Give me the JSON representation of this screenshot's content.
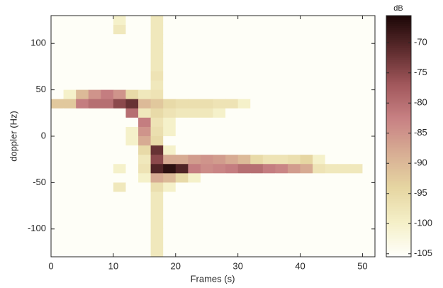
{
  "chart_data": {
    "type": "heatmap",
    "xlabel": "Frames (s)",
    "ylabel": "doppler (Hz)",
    "colorbar_label": "dB",
    "xlim": [
      0,
      52
    ],
    "ylim": [
      -130,
      130
    ],
    "xticks": [
      0,
      10,
      20,
      30,
      40,
      50
    ],
    "yticks": [
      -100,
      -50,
      0,
      50,
      100
    ],
    "clim": [
      -105.5,
      -65.5
    ],
    "cticks": [
      -105,
      -100,
      -95,
      -90,
      -85,
      -80,
      -75,
      -70
    ],
    "colormap": [
      "#fffffb",
      "#f5f0c8",
      "#e6d6a2",
      "#d8ae94",
      "#c88284",
      "#a2585c",
      "#5e2c2e",
      "#1c0707"
    ],
    "xbins": [
      0,
      2,
      4,
      6,
      8,
      10,
      12,
      14,
      16,
      18,
      20,
      22,
      24,
      26,
      28,
      30,
      32,
      34,
      36,
      38,
      40,
      42,
      44,
      46,
      48,
      50,
      52
    ],
    "ybins": [
      130,
      120,
      110,
      100,
      90,
      80,
      70,
      60,
      50,
      40,
      30,
      20,
      10,
      0,
      -10,
      -20,
      -30,
      -40,
      -50,
      -60,
      -70,
      -80,
      -90,
      -100,
      -110,
      -120,
      -130
    ],
    "z": [
      [
        -105,
        -105,
        -105,
        -105,
        -105,
        -100,
        -105,
        -105,
        -98,
        -105,
        -105,
        -105,
        -105,
        -105,
        -105,
        -105,
        -105,
        -105,
        -105,
        -105,
        -105,
        -105,
        -105,
        -105,
        -105,
        -105
      ],
      [
        -105,
        -105,
        -105,
        -105,
        -105,
        -98,
        -105,
        -105,
        -98,
        -105,
        -105,
        -105,
        -105,
        -105,
        -105,
        -105,
        -105,
        -105,
        -105,
        -105,
        -105,
        -105,
        -105,
        -105,
        -105,
        -105
      ],
      [
        -105,
        -105,
        -105,
        -105,
        -105,
        -105,
        -105,
        -105,
        -98,
        -105,
        -105,
        -105,
        -105,
        -105,
        -105,
        -105,
        -105,
        -105,
        -105,
        -105,
        -105,
        -105,
        -105,
        -105,
        -105,
        -105
      ],
      [
        -105,
        -105,
        -105,
        -105,
        -105,
        -105,
        -105,
        -105,
        -98,
        -105,
        -105,
        -105,
        -105,
        -105,
        -105,
        -105,
        -105,
        -105,
        -105,
        -105,
        -105,
        -105,
        -105,
        -105,
        -105,
        -105
      ],
      [
        -105,
        -105,
        -105,
        -105,
        -105,
        -105,
        -105,
        -105,
        -98,
        -105,
        -105,
        -105,
        -105,
        -105,
        -105,
        -105,
        -105,
        -105,
        -105,
        -105,
        -105,
        -105,
        -105,
        -105,
        -105,
        -105
      ],
      [
        -105,
        -105,
        -105,
        -105,
        -105,
        -105,
        -105,
        -105,
        -98,
        -105,
        -105,
        -105,
        -105,
        -105,
        -105,
        -105,
        -105,
        -105,
        -105,
        -105,
        -105,
        -105,
        -105,
        -105,
        -105,
        -105
      ],
      [
        -105,
        -105,
        -105,
        -105,
        -105,
        -105,
        -105,
        -105,
        -97,
        -105,
        -105,
        -105,
        -105,
        -105,
        -105,
        -105,
        -105,
        -105,
        -105,
        -105,
        -105,
        -105,
        -105,
        -105,
        -105,
        -105
      ],
      [
        -105,
        -105,
        -105,
        -105,
        -105,
        -105,
        -105,
        -105,
        -98,
        -105,
        -105,
        -105,
        -105,
        -105,
        -105,
        -105,
        -105,
        -105,
        -105,
        -105,
        -105,
        -105,
        -105,
        -105,
        -105,
        -105
      ],
      [
        -105,
        -100,
        -90,
        -85,
        -82,
        -85,
        -95,
        -98,
        -97,
        -105,
        -105,
        -105,
        -105,
        -105,
        -105,
        -105,
        -105,
        -105,
        -105,
        -105,
        -105,
        -105,
        -105,
        -105,
        -105,
        -105
      ],
      [
        -92,
        -92,
        -82,
        -80,
        -80,
        -75,
        -72,
        -90,
        -92,
        -95,
        -96,
        -96,
        -96,
        -97,
        -97,
        -100,
        -105,
        -105,
        -105,
        -105,
        -105,
        -105,
        -105,
        -105,
        -105,
        -105
      ],
      [
        -105,
        -105,
        -105,
        -105,
        -105,
        -105,
        -80,
        -98,
        -95,
        -97,
        -98,
        -98,
        -98,
        -100,
        -105,
        -105,
        -105,
        -105,
        -105,
        -105,
        -105,
        -105,
        -105,
        -105,
        -105,
        -105
      ],
      [
        -105,
        -105,
        -105,
        -105,
        -105,
        -105,
        -105,
        -82,
        -97,
        -100,
        -105,
        -105,
        -105,
        -105,
        -105,
        -105,
        -105,
        -105,
        -105,
        -105,
        -105,
        -105,
        -105,
        -105,
        -105,
        -105
      ],
      [
        -105,
        -105,
        -105,
        -105,
        -105,
        -105,
        -100,
        -85,
        -96,
        -100,
        -105,
        -105,
        -105,
        -105,
        -105,
        -105,
        -105,
        -105,
        -105,
        -105,
        -105,
        -105,
        -105,
        -105,
        -105,
        -105
      ],
      [
        -105,
        -105,
        -105,
        -105,
        -105,
        -105,
        -100,
        -88,
        -95,
        -105,
        -105,
        -105,
        -105,
        -105,
        -105,
        -105,
        -105,
        -105,
        -105,
        -105,
        -105,
        -105,
        -105,
        -105,
        -105,
        -105
      ],
      [
        -105,
        -105,
        -105,
        -105,
        -105,
        -105,
        -105,
        -95,
        -72,
        -100,
        -105,
        -105,
        -105,
        -105,
        -105,
        -105,
        -105,
        -105,
        -105,
        -105,
        -105,
        -105,
        -105,
        -105,
        -105,
        -105
      ],
      [
        -105,
        -105,
        -105,
        -105,
        -105,
        -105,
        -105,
        -98,
        -75,
        -88,
        -88,
        -86,
        -85,
        -86,
        -88,
        -90,
        -95,
        -97,
        -97,
        -96,
        -94,
        -100,
        -105,
        -105,
        -105,
        -105
      ],
      [
        -105,
        -105,
        -105,
        -105,
        -105,
        -100,
        -105,
        -97,
        -70,
        -67,
        -70,
        -82,
        -84,
        -83,
        -82,
        -80,
        -80,
        -82,
        -83,
        -86,
        -88,
        -97,
        -98,
        -98,
        -98,
        -105
      ],
      [
        -105,
        -105,
        -105,
        -105,
        -105,
        -105,
        -105,
        -100,
        -88,
        -90,
        -95,
        -100,
        -105,
        -105,
        -105,
        -105,
        -105,
        -105,
        -105,
        -105,
        -105,
        -105,
        -105,
        -105,
        -105,
        -105
      ],
      [
        -105,
        -105,
        -105,
        -105,
        -105,
        -98,
        -105,
        -105,
        -96,
        -100,
        -105,
        -105,
        -105,
        -105,
        -105,
        -105,
        -105,
        -105,
        -105,
        -105,
        -105,
        -105,
        -105,
        -105,
        -105,
        -105
      ],
      [
        -105,
        -105,
        -105,
        -105,
        -105,
        -105,
        -105,
        -105,
        -98,
        -105,
        -105,
        -105,
        -105,
        -105,
        -105,
        -105,
        -105,
        -105,
        -105,
        -105,
        -105,
        -105,
        -105,
        -105,
        -105,
        -105
      ],
      [
        -105,
        -105,
        -105,
        -105,
        -105,
        -105,
        -105,
        -105,
        -98,
        -105,
        -105,
        -105,
        -105,
        -105,
        -105,
        -105,
        -105,
        -105,
        -105,
        -105,
        -105,
        -105,
        -105,
        -105,
        -105,
        -105
      ],
      [
        -105,
        -105,
        -105,
        -105,
        -105,
        -105,
        -105,
        -105,
        -98,
        -105,
        -105,
        -105,
        -105,
        -105,
        -105,
        -105,
        -105,
        -105,
        -105,
        -105,
        -105,
        -105,
        -105,
        -105,
        -105,
        -105
      ],
      [
        -105,
        -105,
        -105,
        -105,
        -105,
        -105,
        -105,
        -105,
        -98,
        -105,
        -105,
        -105,
        -105,
        -105,
        -105,
        -105,
        -105,
        -105,
        -105,
        -105,
        -105,
        -105,
        -105,
        -105,
        -105,
        -105
      ],
      [
        -105,
        -105,
        -105,
        -105,
        -105,
        -105,
        -105,
        -105,
        -98,
        -105,
        -105,
        -105,
        -105,
        -105,
        -105,
        -105,
        -105,
        -105,
        -105,
        -105,
        -105,
        -105,
        -105,
        -105,
        -105,
        -105
      ],
      [
        -105,
        -105,
        -105,
        -105,
        -105,
        -105,
        -105,
        -105,
        -98,
        -105,
        -105,
        -105,
        -105,
        -105,
        -105,
        -105,
        -105,
        -105,
        -105,
        -105,
        -105,
        -105,
        -105,
        -105,
        -105,
        -105
      ],
      [
        -105,
        -105,
        -105,
        -105,
        -105,
        -105,
        -105,
        -105,
        -98,
        -105,
        -105,
        -105,
        -105,
        -105,
        -105,
        -105,
        -105,
        -105,
        -105,
        -105,
        -105,
        -105,
        -105,
        -105,
        -105,
        -105
      ]
    ]
  }
}
